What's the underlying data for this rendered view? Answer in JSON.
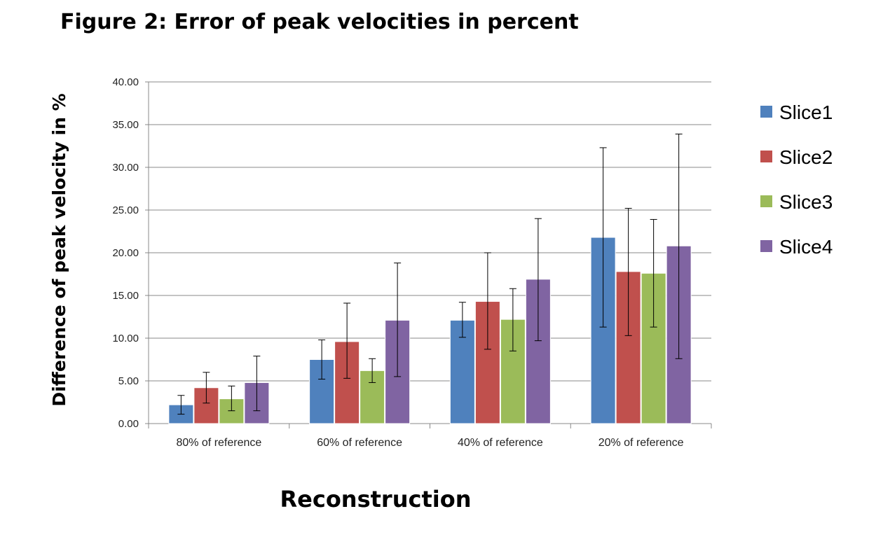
{
  "figure_title": "Figure 2: Error of peak velocities in percent",
  "colors": {
    "Slice1": "#4f81bd",
    "Slice2": "#c0504d",
    "Slice3": "#9bbb59",
    "Slice4": "#8064a2",
    "grid": "#888888",
    "error_bar": "#000000"
  },
  "chart_data": {
    "type": "bar",
    "title": "Figure 2: Error of peak velocities in percent",
    "xlabel": "Reconstruction",
    "ylabel": "Difference of peak velocity in %",
    "ylim": [
      0,
      40
    ],
    "yticks": [
      0,
      5,
      10,
      15,
      20,
      25,
      30,
      35,
      40
    ],
    "ytick_labels": [
      "0.00",
      "5.00",
      "10.00",
      "15.00",
      "20.00",
      "25.00",
      "30.00",
      "35.00",
      "40.00"
    ],
    "grid": true,
    "legend_position": "right",
    "categories": [
      "80% of reference",
      "60% of reference",
      "40% of reference",
      "20% of reference"
    ],
    "series": [
      {
        "name": "Slice1",
        "values": [
          2.2,
          7.5,
          12.1,
          21.8
        ],
        "err_low": [
          1.1,
          5.2,
          10.1,
          11.3
        ],
        "err_high": [
          3.3,
          9.8,
          14.2,
          32.3
        ]
      },
      {
        "name": "Slice2",
        "values": [
          4.2,
          9.6,
          14.3,
          17.8
        ],
        "err_low": [
          2.4,
          5.3,
          8.7,
          10.3
        ],
        "err_high": [
          6.0,
          14.1,
          20.0,
          25.2
        ]
      },
      {
        "name": "Slice3",
        "values": [
          2.9,
          6.2,
          12.2,
          17.6
        ],
        "err_low": [
          1.5,
          4.8,
          8.5,
          11.3
        ],
        "err_high": [
          4.4,
          7.6,
          15.8,
          23.9
        ]
      },
      {
        "name": "Slice4",
        "values": [
          4.8,
          12.1,
          16.9,
          20.8
        ],
        "err_low": [
          1.5,
          5.5,
          9.7,
          7.6
        ],
        "err_high": [
          7.9,
          18.8,
          24.0,
          33.9
        ]
      }
    ]
  }
}
